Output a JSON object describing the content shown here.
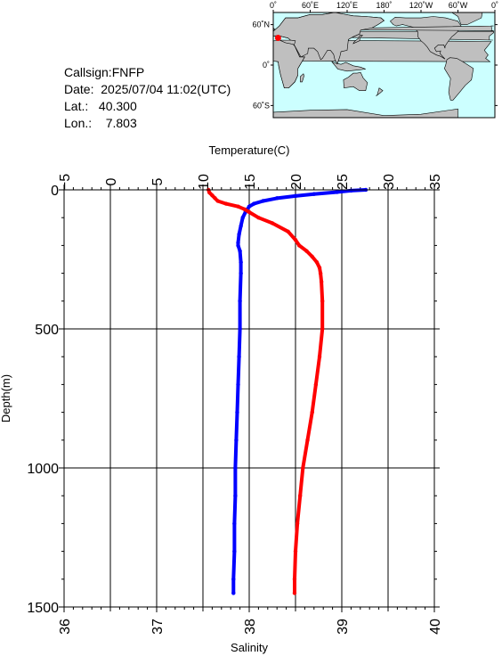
{
  "info": {
    "callsign": "Callsign:FNFP",
    "date": "Date:  2025/07/04 11:02(UTC)",
    "lat": "Lat.:   40.300",
    "lon": "Lon.:    7.803"
  },
  "map": {
    "lon_labels": [
      "0˚",
      "60˚E",
      "120˚E",
      "180˚",
      "120˚W",
      "60˚W",
      "0˚"
    ],
    "lat_labels": [
      "60˚N",
      "0˚",
      "60˚S"
    ],
    "ocean_color": "#ccffff",
    "land_color": "#bfbfbf",
    "marker_color": "#ff0000",
    "marker_lon": 7.803,
    "marker_lat": 40.3
  },
  "chart_data": {
    "type": "line",
    "top_axis": {
      "title": "Temperature(C)",
      "range": [
        -5,
        35
      ],
      "ticks": [
        "-5",
        "0",
        "5",
        "10",
        "15",
        "20",
        "25",
        "30",
        "35"
      ]
    },
    "bottom_axis": {
      "title": "Salinity",
      "range": [
        36,
        40
      ],
      "ticks": [
        "36",
        "37",
        "38",
        "39",
        "40"
      ]
    },
    "y_axis": {
      "title": "Depth(m)",
      "range": [
        0,
        1500
      ],
      "inverted": true,
      "ticks": [
        "0",
        "500",
        "1000",
        "1500"
      ]
    },
    "grid": true,
    "series": [
      {
        "variable": "temperature",
        "axis": "top",
        "color": "#0000ff",
        "depth": [
          0,
          3,
          8,
          15,
          22,
          30,
          40,
          50,
          60,
          80,
          100,
          130,
          160,
          190,
          200,
          220,
          260,
          300,
          400,
          500,
          600,
          700,
          800,
          900,
          1000,
          1100,
          1200,
          1300,
          1400,
          1450
        ],
        "values": [
          27.6,
          26.0,
          24.5,
          22.0,
          20.0,
          18.0,
          16.5,
          15.5,
          15.0,
          14.6,
          14.3,
          14.1,
          13.9,
          13.8,
          13.8,
          14.0,
          14.1,
          14.1,
          14.0,
          14.0,
          13.9,
          13.8,
          13.7,
          13.6,
          13.5,
          13.5,
          13.4,
          13.4,
          13.3,
          13.3
        ]
      },
      {
        "variable": "salinity",
        "axis": "bottom",
        "color": "#ff0000",
        "depth": [
          0,
          10,
          20,
          30,
          40,
          50,
          60,
          70,
          80,
          100,
          120,
          150,
          180,
          200,
          220,
          240,
          260,
          280,
          300,
          330,
          400,
          500,
          600,
          700,
          800,
          900,
          1000,
          1100,
          1200,
          1300,
          1400,
          1450
        ],
        "values": [
          37.56,
          37.57,
          37.6,
          37.63,
          37.66,
          37.75,
          37.88,
          37.95,
          38.0,
          38.1,
          38.25,
          38.42,
          38.5,
          38.54,
          38.62,
          38.68,
          38.73,
          38.76,
          38.77,
          38.78,
          38.79,
          38.79,
          38.76,
          38.72,
          38.68,
          38.63,
          38.58,
          38.55,
          38.52,
          38.5,
          38.49,
          38.49
        ]
      }
    ]
  }
}
